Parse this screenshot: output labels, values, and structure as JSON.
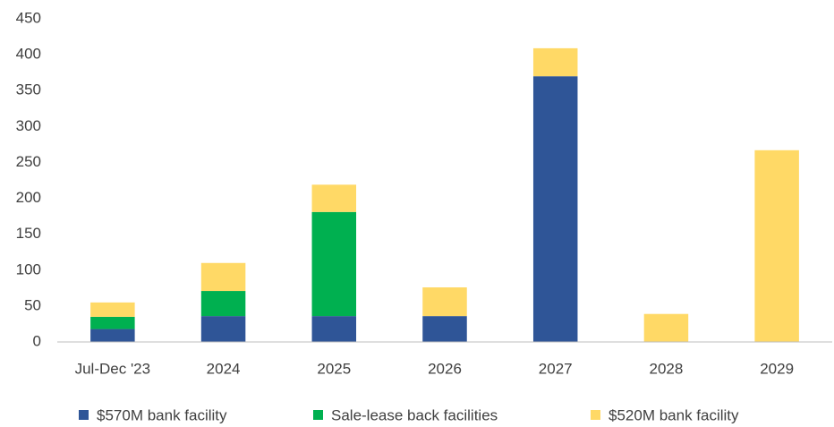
{
  "chart_data": {
    "type": "stacked_bar",
    "categories": [
      "Jul-Dec '23",
      "2024",
      "2025",
      "2026",
      "2027",
      "2028",
      "2029"
    ],
    "series": [
      {
        "name": "$570M bank facility",
        "color": "#2f5597",
        "values": [
          18,
          36,
          36,
          36,
          370,
          0,
          0
        ]
      },
      {
        "name": "Sale-lease back facilities",
        "color": "#00b050",
        "values": [
          17,
          35,
          145,
          0,
          0,
          0,
          0
        ]
      },
      {
        "name": "$520M bank facility",
        "color": "#ffd966",
        "values": [
          20,
          39,
          38,
          40,
          39,
          39,
          267
        ]
      }
    ],
    "ylim": [
      0,
      450
    ],
    "yticks": [
      0,
      50,
      100,
      150,
      200,
      250,
      300,
      350,
      400,
      450
    ],
    "grid": false,
    "legend": "bottom"
  }
}
